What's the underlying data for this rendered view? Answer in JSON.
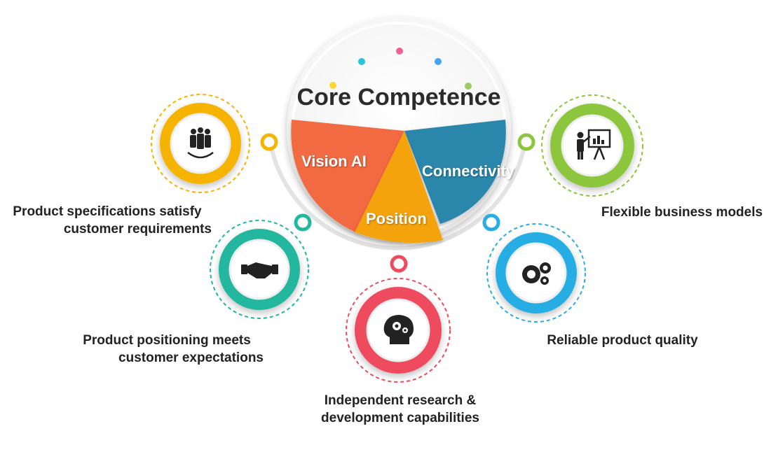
{
  "title": "Core Competence",
  "segments": {
    "vision": {
      "label": "Vision AI",
      "color": "#f26a43"
    },
    "connectivity": {
      "label": "Connectivity",
      "color": "#2c87ab"
    },
    "position": {
      "label": "Position",
      "color": "#f5a30e"
    }
  },
  "nodes": {
    "specs": {
      "line1": "Product specifications satisfy",
      "line2": "customer requirements",
      "icon": "team-icon",
      "color": "#f6b400"
    },
    "positioning": {
      "line1": "Product positioning meets",
      "line2": "customer expectations",
      "icon": "handshake-icon",
      "color": "#22b79e"
    },
    "research": {
      "line1": "Independent research &",
      "line2": "development capabilities",
      "icon": "brain-gears-icon",
      "color": "#ee4b5e"
    },
    "quality": {
      "line1": "Reliable product quality",
      "icon": "gears-icon",
      "color": "#28aee4"
    },
    "business": {
      "line1": "Flexible business models",
      "icon": "presentation-icon",
      "color": "#8cc63e"
    }
  }
}
